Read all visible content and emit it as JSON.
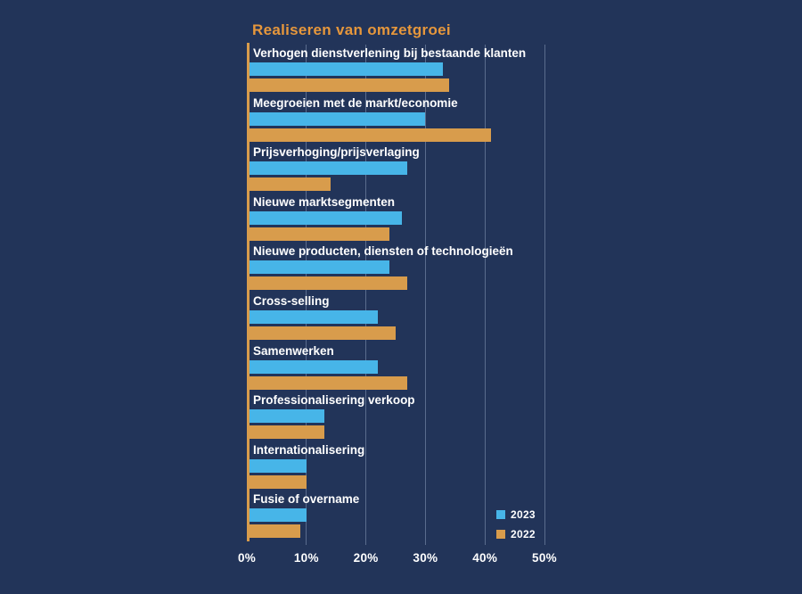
{
  "chart_data": {
    "type": "bar",
    "orientation": "horizontal",
    "title": "Realiseren van omzetgroei",
    "categories": [
      "Verhogen dienstverlening bij bestaande klanten",
      "Meegroeien met de markt/economie",
      "Prijsverhoging/prijsverlaging",
      "Nieuwe marktsegmenten",
      "Nieuwe producten, diensten of technologieën",
      "Cross-selling",
      "Samenwerken",
      "Professionalisering verkoop",
      "Internationalisering",
      "Fusie of overname"
    ],
    "series": [
      {
        "name": "2023",
        "color": "#47B5E8",
        "values": [
          33,
          30,
          27,
          26,
          24,
          22,
          22,
          13,
          10,
          10
        ]
      },
      {
        "name": "2022",
        "color": "#D89C4C",
        "values": [
          34,
          41,
          14,
          24,
          27,
          25,
          27,
          13,
          10,
          9
        ]
      }
    ],
    "x_ticks": [
      "0%",
      "10%",
      "20%",
      "30%",
      "40%",
      "50%"
    ],
    "xlim": [
      0,
      50
    ],
    "grid": "vertical-gridlines",
    "legend_position": "bottom-right",
    "colors": {
      "background": "#223459",
      "title": "#E6973C",
      "axis_line": "#D89C4C",
      "gridline_rgba": "rgba(170,185,215,0.42)",
      "label_text": "#FFFFFF"
    }
  }
}
